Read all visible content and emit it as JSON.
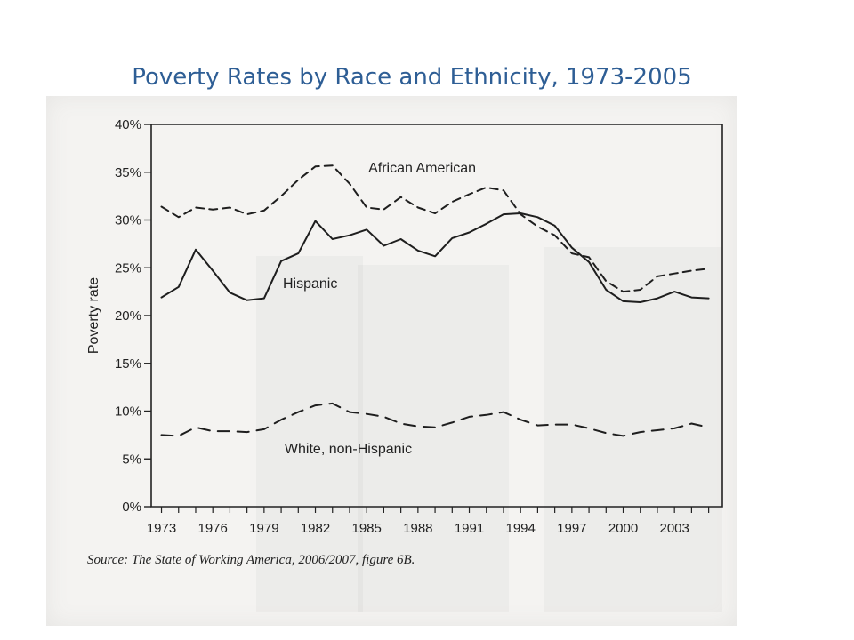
{
  "slide": {
    "title": "Poverty Rates by Race and Ethnicity, 1973-2005",
    "title_color": "#2e5e95"
  },
  "chart_data": {
    "type": "line",
    "title": "",
    "xlabel": "",
    "ylabel": "Poverty rate",
    "x": [
      1973,
      1974,
      1975,
      1976,
      1977,
      1978,
      1979,
      1980,
      1981,
      1982,
      1983,
      1984,
      1985,
      1986,
      1987,
      1988,
      1989,
      1990,
      1991,
      1992,
      1993,
      1994,
      1995,
      1996,
      1997,
      1998,
      1999,
      2000,
      2001,
      2002,
      2003,
      2004,
      2005
    ],
    "x_ticks": [
      "1973",
      "1976",
      "1979",
      "1982",
      "1985",
      "1988",
      "1991",
      "1994",
      "1997",
      "2000",
      "2003"
    ],
    "y_ticks": [
      "0%",
      "5%",
      "10%",
      "15%",
      "20%",
      "25%",
      "30%",
      "35%",
      "40%"
    ],
    "ylim": [
      0,
      40
    ],
    "grid": false,
    "legend": "inline labels",
    "series": [
      {
        "name": "African American",
        "style": "dashed",
        "values": [
          31.4,
          30.3,
          31.3,
          31.1,
          31.3,
          30.6,
          31.0,
          32.5,
          34.2,
          35.6,
          35.7,
          33.8,
          31.3,
          31.1,
          32.4,
          31.3,
          30.7,
          31.9,
          32.7,
          33.4,
          33.1,
          30.6,
          29.3,
          28.4,
          26.5,
          26.1,
          23.6,
          22.5,
          22.7,
          24.1,
          24.4,
          24.7,
          24.9
        ]
      },
      {
        "name": "Hispanic",
        "style": "solid",
        "values": [
          21.9,
          23.0,
          26.9,
          24.7,
          22.4,
          21.6,
          21.8,
          25.7,
          26.5,
          29.9,
          28.0,
          28.4,
          29.0,
          27.3,
          28.0,
          26.8,
          26.2,
          28.1,
          28.7,
          29.6,
          30.6,
          30.7,
          30.3,
          29.4,
          27.1,
          25.6,
          22.7,
          21.5,
          21.4,
          21.8,
          22.5,
          21.9,
          21.8
        ]
      },
      {
        "name": "White, non-Hispanic",
        "style": "long-dashed",
        "values": [
          7.5,
          7.4,
          8.3,
          7.9,
          7.9,
          7.8,
          8.1,
          9.1,
          9.9,
          10.6,
          10.8,
          9.9,
          9.7,
          9.4,
          8.7,
          8.4,
          8.3,
          8.8,
          9.4,
          9.6,
          9.9,
          9.1,
          8.5,
          8.6,
          8.6,
          8.2,
          7.7,
          7.4,
          7.8,
          8.0,
          8.2,
          8.7,
          8.3
        ]
      }
    ]
  },
  "source": {
    "text": "Source: The State of Working America, 2006/2007, figure 6B."
  }
}
